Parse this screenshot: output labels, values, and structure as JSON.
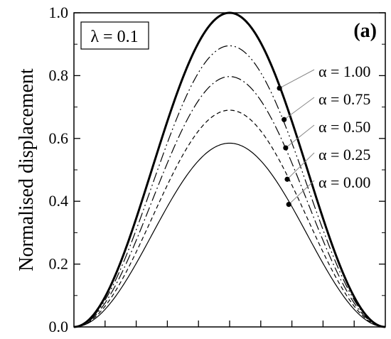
{
  "chart_data": {
    "type": "line",
    "title": "",
    "xlabel": "",
    "ylabel": "Normalised displacement",
    "panel_label": "(a)",
    "parameter_label": "λ = 0.1",
    "x_range": [
      0,
      1
    ],
    "ylim": [
      0,
      1
    ],
    "y_ticks": [
      0.0,
      0.2,
      0.4,
      0.6,
      0.8,
      1.0
    ],
    "y_tick_labels": [
      "0.0",
      "0.2",
      "0.4",
      "0.6",
      "0.8",
      "1.0"
    ],
    "x_ticks_count": 10,
    "shape": "sin-squared bump",
    "series": [
      {
        "name": "α = 1.00",
        "peak": 1.0,
        "style": "solid-thick",
        "marker_x": 0.66,
        "marker_y": 0.76
      },
      {
        "name": "α = 0.75",
        "peak": 0.895,
        "style": "dash-dot-dot",
        "marker_x": 0.675,
        "marker_y": 0.66
      },
      {
        "name": "α = 0.50",
        "peak": 0.797,
        "style": "dash-dot",
        "marker_x": 0.68,
        "marker_y": 0.57
      },
      {
        "name": "α = 0.25",
        "peak": 0.69,
        "style": "dashed",
        "marker_x": 0.685,
        "marker_y": 0.47
      },
      {
        "name": "α = 0.00",
        "peak": 0.585,
        "style": "solid-thin",
        "marker_x": 0.69,
        "marker_y": 0.39
      }
    ]
  }
}
